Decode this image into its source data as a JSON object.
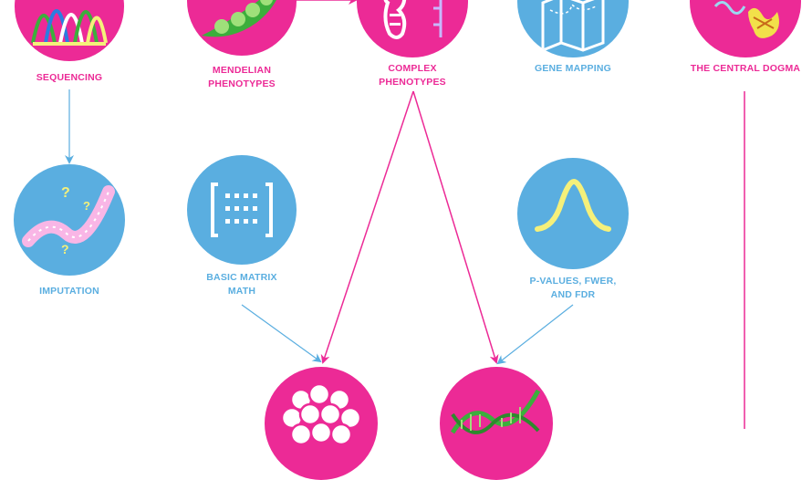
{
  "colors": {
    "pink": "#ec2a96",
    "blue": "#5aaee0",
    "yellow": "#f5f07a",
    "pea_green": "#3cae3c"
  },
  "nodes": {
    "sequencing": {
      "label": "SEQUENCING",
      "icon": "chromatogram-icon"
    },
    "mendelian": {
      "label_line1": "MENDELIAN",
      "label_line2": "PHENOTYPES",
      "icon": "pea-pod-icon"
    },
    "complex": {
      "label_line1": "COMPLEX",
      "label_line2": "PHENOTYPES",
      "icon": "chromosome-icon"
    },
    "gene_mapping": {
      "label": "GENE MAPPING",
      "icon": "map-icon"
    },
    "central_dogma": {
      "label": "THE CENTRAL DOGMA",
      "icon": "protein-icon"
    },
    "imputation": {
      "label": "IMPUTATION",
      "icon": "dna-question-icon"
    },
    "matrix": {
      "label_line1": "BASIC MATRIX",
      "label_line2": "MATH",
      "icon": "matrix-icon"
    },
    "pvalues": {
      "label_line1": "P-VALUES, FWER,",
      "label_line2": "AND FDR",
      "icon": "bell-curve-icon"
    },
    "cells": {
      "icon": "cell-cluster-icon"
    },
    "dna": {
      "icon": "dna-helix-icon"
    }
  }
}
